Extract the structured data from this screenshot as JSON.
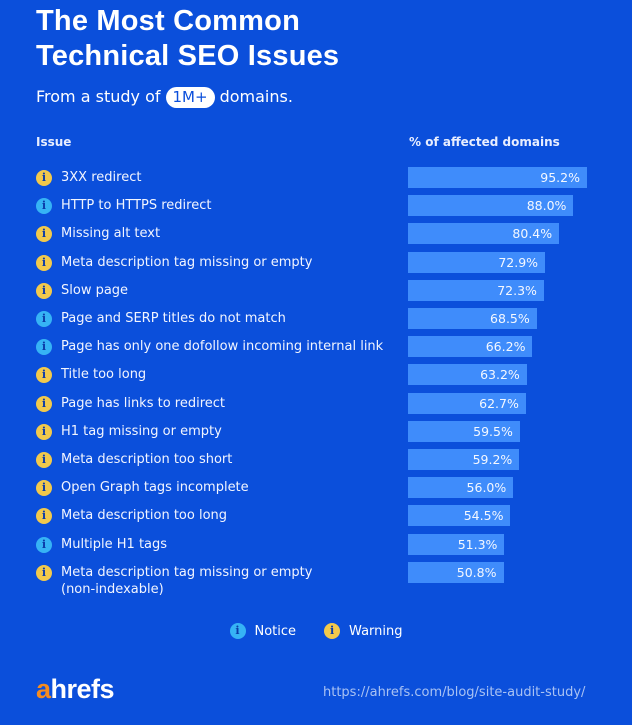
{
  "header": {
    "title_line1": "The Most Common",
    "title_line2": "Technical SEO Issues",
    "subtitle_prefix": "From a study of",
    "subtitle_highlight": "1M+",
    "subtitle_suffix": "domains."
  },
  "colors": {
    "background": "#0b4fdb",
    "bar": "#3f8cfb",
    "notice": "#36b3f5",
    "warning": "#f2c94c",
    "logo_accent": "#f58b1f"
  },
  "chart_data": {
    "type": "bar",
    "orientation": "horizontal",
    "column_headers": {
      "issue": "Issue",
      "value": "% of affected domains"
    },
    "xlim": [
      0,
      100
    ],
    "rows": [
      {
        "issue": "3XX redirect",
        "value": 95.2,
        "label": "95.2%",
        "type": "warning"
      },
      {
        "issue": "HTTP to HTTPS redirect",
        "value": 88.0,
        "label": "88.0%",
        "type": "notice"
      },
      {
        "issue": "Missing alt text",
        "value": 80.4,
        "label": "80.4%",
        "type": "warning"
      },
      {
        "issue": "Meta description tag missing or empty",
        "value": 72.9,
        "label": "72.9%",
        "type": "warning"
      },
      {
        "issue": "Slow page",
        "value": 72.3,
        "label": "72.3%",
        "type": "warning"
      },
      {
        "issue": "Page and SERP titles do not match",
        "value": 68.5,
        "label": "68.5%",
        "type": "notice"
      },
      {
        "issue": "Page has only one dofollow incoming internal link",
        "value": 66.2,
        "label": "66.2%",
        "type": "notice"
      },
      {
        "issue": "Title too long",
        "value": 63.2,
        "label": "63.2%",
        "type": "warning"
      },
      {
        "issue": "Page has links to redirect",
        "value": 62.7,
        "label": "62.7%",
        "type": "warning"
      },
      {
        "issue": "H1 tag missing or empty",
        "value": 59.5,
        "label": "59.5%",
        "type": "warning"
      },
      {
        "issue": "Meta description too short",
        "value": 59.2,
        "label": "59.2%",
        "type": "warning"
      },
      {
        "issue": "Open Graph tags incomplete",
        "value": 56.0,
        "label": "56.0%",
        "type": "warning"
      },
      {
        "issue": "Meta description too long",
        "value": 54.5,
        "label": "54.5%",
        "type": "warning"
      },
      {
        "issue": "Multiple H1 tags",
        "value": 51.3,
        "label": "51.3%",
        "type": "notice"
      },
      {
        "issue": "Meta description tag missing or empty",
        "issue_line2": "(non-indexable)",
        "value": 50.8,
        "label": "50.8%",
        "type": "warning"
      }
    ],
    "legend": [
      {
        "label": "Notice",
        "type": "notice"
      },
      {
        "label": "Warning",
        "type": "warning"
      }
    ]
  },
  "footer": {
    "logo_a": "a",
    "logo_rest": "hrefs",
    "url": "https://ahrefs.com/blog/site-audit-study/"
  }
}
